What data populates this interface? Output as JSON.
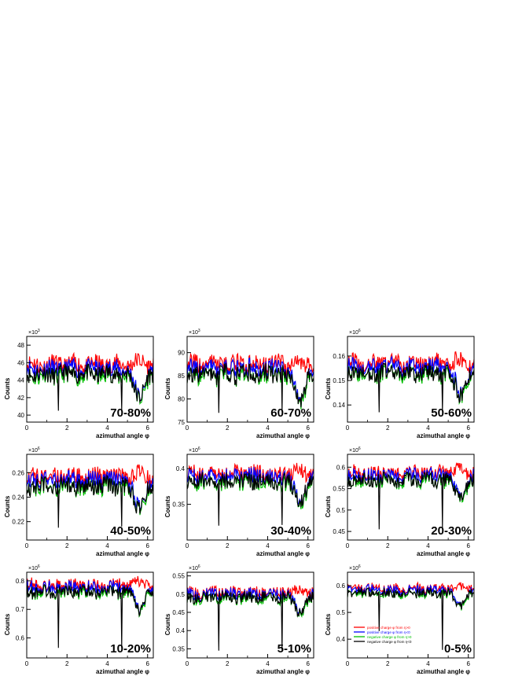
{
  "legend": {
    "entries": [
      {
        "label": "positive charge φ from η>0",
        "color": "#ff0000"
      },
      {
        "label": "positive charge φ from η<0",
        "color": "#0000ff"
      },
      {
        "label": "negative charge φ from η>0",
        "color": "#00c000"
      },
      {
        "label": "negative charge φ from η<0",
        "color": "#000000"
      }
    ],
    "placement": "bottom-left of last panel"
  },
  "chart_data": [
    {
      "type": "line",
      "panel_label": "70-80%",
      "xlabel": "azimuthal angle φ",
      "ylabel": "Counts",
      "multiplier": "×10",
      "multiplier_exp": "3",
      "xlim": [
        0,
        6.2832
      ],
      "ylim": [
        39.2,
        49
      ],
      "xticks": [
        0,
        2,
        4,
        6
      ],
      "yticks": [
        40,
        42,
        44,
        46,
        48
      ],
      "base_level": 45.8,
      "offsets": [
        0.0,
        -0.5,
        -1.3,
        -1.1
      ],
      "fluct_amp": 1.0,
      "edge_dip": 3.5,
      "spikes": [
        {
          "x": 1.57,
          "y": 40.5
        },
        {
          "x": 4.71,
          "y": 40.6
        }
      ],
      "series": [
        {
          "name": "positive charge φ from η>0",
          "color": "#ff0000"
        },
        {
          "name": "positive charge φ from η<0",
          "color": "#0000ff"
        },
        {
          "name": "negative charge φ from η>0",
          "color": "#00c000"
        },
        {
          "name": "negative charge φ from η<0",
          "color": "#000000"
        }
      ]
    },
    {
      "type": "line",
      "panel_label": "60-70%",
      "xlabel": "azimuthal angle φ",
      "ylabel": "Counts",
      "multiplier": "×10",
      "multiplier_exp": "3",
      "xlim": [
        0,
        6.2832
      ],
      "ylim": [
        75,
        93.5
      ],
      "xticks": [
        0,
        2,
        4,
        6
      ],
      "yticks": [
        75,
        80,
        85,
        90
      ],
      "base_level": 87.5,
      "offsets": [
        0.0,
        -1.0,
        -2.5,
        -2.2
      ],
      "fluct_amp": 2.0,
      "edge_dip": 7.0,
      "spikes": [
        {
          "x": 1.57,
          "y": 77.0
        },
        {
          "x": 4.71,
          "y": 77.3
        }
      ],
      "series": [
        {
          "name": "positive charge φ from η>0",
          "color": "#ff0000"
        },
        {
          "name": "positive charge φ from η<0",
          "color": "#0000ff"
        },
        {
          "name": "negative charge φ from η>0",
          "color": "#00c000"
        },
        {
          "name": "negative charge φ from η<0",
          "color": "#000000"
        }
      ]
    },
    {
      "type": "line",
      "panel_label": "50-60%",
      "xlabel": "azimuthal angle φ",
      "ylabel": "Counts",
      "multiplier": "×10",
      "multiplier_exp": "6",
      "xlim": [
        0,
        6.2832
      ],
      "ylim": [
        0.133,
        0.168
      ],
      "xticks": [
        0,
        2,
        4,
        6
      ],
      "yticks": [
        0.14,
        0.15,
        0.16
      ],
      "base_level": 0.157,
      "offsets": [
        0.0,
        -0.0015,
        -0.0045,
        -0.004
      ],
      "fluct_amp": 0.0035,
      "edge_dip": 0.012,
      "spikes": [
        {
          "x": 1.57,
          "y": 0.137
        },
        {
          "x": 4.71,
          "y": 0.1375
        }
      ],
      "series": [
        {
          "name": "positive charge φ from η>0",
          "color": "#ff0000"
        },
        {
          "name": "positive charge φ from η<0",
          "color": "#0000ff"
        },
        {
          "name": "negative charge φ from η>0",
          "color": "#00c000"
        },
        {
          "name": "negative charge φ from η<0",
          "color": "#000000"
        }
      ]
    },
    {
      "type": "line",
      "panel_label": "40-50%",
      "xlabel": "azimuthal angle φ",
      "ylabel": "Counts",
      "multiplier": "×10",
      "multiplier_exp": "6",
      "xlim": [
        0,
        6.2832
      ],
      "ylim": [
        0.205,
        0.275
      ],
      "xticks": [
        0,
        2,
        4,
        6
      ],
      "yticks": [
        0.22,
        0.24,
        0.26
      ],
      "base_level": 0.257,
      "offsets": [
        0.0,
        -0.003,
        -0.009,
        -0.008
      ],
      "fluct_amp": 0.007,
      "edge_dip": 0.025,
      "spikes": [
        {
          "x": 1.57,
          "y": 0.215
        },
        {
          "x": 4.71,
          "y": 0.216
        }
      ],
      "series": [
        {
          "name": "positive charge φ from η>0",
          "color": "#ff0000"
        },
        {
          "name": "positive charge φ from η<0",
          "color": "#0000ff"
        },
        {
          "name": "negative charge φ from η>0",
          "color": "#00c000"
        },
        {
          "name": "negative charge φ from η<0",
          "color": "#000000"
        }
      ]
    },
    {
      "type": "line",
      "panel_label": "30-40%",
      "xlabel": "azimuthal angle φ",
      "ylabel": "Counts",
      "multiplier": "×10",
      "multiplier_exp": "6",
      "xlim": [
        0,
        6.2832
      ],
      "ylim": [
        0.3,
        0.42
      ],
      "xticks": [
        0,
        2,
        4,
        6
      ],
      "yticks": [
        0.35,
        0.4
      ],
      "base_level": 0.393,
      "offsets": [
        0.0,
        -0.004,
        -0.013,
        -0.011
      ],
      "fluct_amp": 0.011,
      "edge_dip": 0.04,
      "spikes": [
        {
          "x": 1.57,
          "y": 0.32
        },
        {
          "x": 4.71,
          "y": 0.321
        }
      ],
      "series": [
        {
          "name": "positive charge φ from η>0",
          "color": "#ff0000"
        },
        {
          "name": "positive charge φ from η<0",
          "color": "#0000ff"
        },
        {
          "name": "negative charge φ from η>0",
          "color": "#00c000"
        },
        {
          "name": "negative charge φ from η<0",
          "color": "#000000"
        }
      ]
    },
    {
      "type": "line",
      "panel_label": "20-30%",
      "xlabel": "azimuthal angle φ",
      "ylabel": "Counts",
      "multiplier": "×10",
      "multiplier_exp": "6",
      "xlim": [
        0,
        6.2832
      ],
      "ylim": [
        0.43,
        0.63
      ],
      "xticks": [
        0,
        2,
        4,
        6
      ],
      "yticks": [
        0.45,
        0.5,
        0.55,
        0.6
      ],
      "base_level": 0.587,
      "offsets": [
        0.0,
        -0.006,
        -0.02,
        -0.017
      ],
      "fluct_amp": 0.016,
      "edge_dip": 0.06,
      "spikes": [
        {
          "x": 1.57,
          "y": 0.455
        },
        {
          "x": 4.71,
          "y": 0.457
        }
      ],
      "series": [
        {
          "name": "positive charge φ from η>0",
          "color": "#ff0000"
        },
        {
          "name": "positive charge φ from η<0",
          "color": "#0000ff"
        },
        {
          "name": "negative charge φ from η>0",
          "color": "#00c000"
        },
        {
          "name": "negative charge φ from η<0",
          "color": "#000000"
        }
      ]
    },
    {
      "type": "line",
      "panel_label": "10-20%",
      "xlabel": "azimuthal angle φ",
      "ylabel": "Counts",
      "multiplier": "×10",
      "multiplier_exp": "6",
      "xlim": [
        0,
        6.2832
      ],
      "ylim": [
        0.53,
        0.83
      ],
      "xticks": [
        0,
        2,
        4,
        6
      ],
      "yticks": [
        0.6,
        0.7,
        0.8
      ],
      "base_level": 0.785,
      "offsets": [
        0.0,
        -0.008,
        -0.026,
        -0.022
      ],
      "fluct_amp": 0.022,
      "edge_dip": 0.09,
      "spikes": [
        {
          "x": 1.57,
          "y": 0.565
        },
        {
          "x": 4.71,
          "y": 0.567
        }
      ],
      "series": [
        {
          "name": "positive charge φ from η>0",
          "color": "#ff0000"
        },
        {
          "name": "positive charge φ from η<0",
          "color": "#0000ff"
        },
        {
          "name": "negative charge φ from η>0",
          "color": "#00c000"
        },
        {
          "name": "negative charge φ from η<0",
          "color": "#000000"
        }
      ]
    },
    {
      "type": "line",
      "panel_label": "5-10%",
      "xlabel": "azimuthal angle φ",
      "ylabel": "Counts",
      "multiplier": "×10",
      "multiplier_exp": "6",
      "xlim": [
        0,
        6.2832
      ],
      "ylim": [
        0.325,
        0.56
      ],
      "xticks": [
        0,
        2,
        4,
        6
      ],
      "yticks": [
        0.35,
        0.4,
        0.45,
        0.5,
        0.55
      ],
      "base_level": 0.505,
      "offsets": [
        0.0,
        -0.005,
        -0.017,
        -0.014
      ],
      "fluct_amp": 0.015,
      "edge_dip": 0.055,
      "spikes": [
        {
          "x": 1.57,
          "y": 0.345
        },
        {
          "x": 4.71,
          "y": 0.347
        }
      ],
      "series": [
        {
          "name": "positive charge φ from η>0",
          "color": "#ff0000"
        },
        {
          "name": "positive charge φ from η<0",
          "color": "#0000ff"
        },
        {
          "name": "negative charge φ from η>0",
          "color": "#00c000"
        },
        {
          "name": "negative charge φ from η<0",
          "color": "#000000"
        }
      ]
    },
    {
      "type": "line",
      "panel_label": "0-5%",
      "xlabel": "azimuthal angle φ",
      "ylabel": "Counts",
      "multiplier": "×10",
      "multiplier_exp": "6",
      "xlim": [
        0,
        6.2832
      ],
      "ylim": [
        0.33,
        0.65
      ],
      "xticks": [
        0,
        2,
        4,
        6
      ],
      "yticks": [
        0.4,
        0.5,
        0.6
      ],
      "base_level": 0.59,
      "offsets": [
        0.0,
        -0.006,
        -0.02,
        -0.017
      ],
      "fluct_amp": 0.017,
      "edge_dip": 0.065,
      "spikes": [
        {
          "x": 1.57,
          "y": 0.43
        },
        {
          "x": 4.71,
          "y": 0.36
        }
      ],
      "series": [
        {
          "name": "positive charge φ from η>0",
          "color": "#ff0000"
        },
        {
          "name": "positive charge φ from η<0",
          "color": "#0000ff"
        },
        {
          "name": "negative charge φ from η>0",
          "color": "#00c000"
        },
        {
          "name": "negative charge φ from η<0",
          "color": "#000000"
        }
      ]
    }
  ]
}
